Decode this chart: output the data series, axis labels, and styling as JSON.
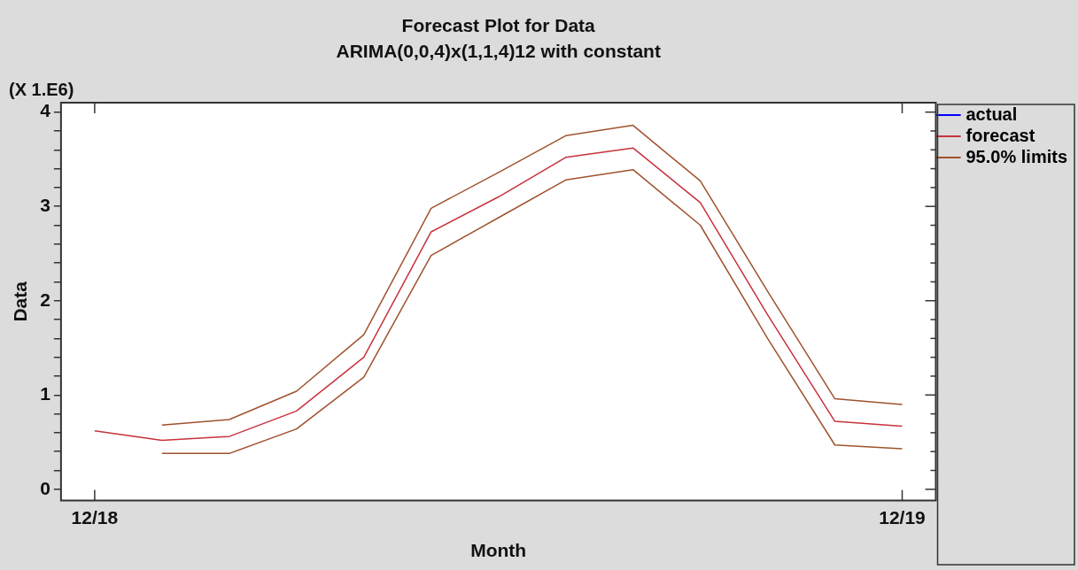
{
  "chart_data": {
    "type": "line",
    "title": "Forecast Plot for Data",
    "subtitle": "ARIMA(0,0,4)x(1,1,4)12 with constant",
    "xlabel": "Month",
    "ylabel": "Data",
    "annotations": [
      "(X 1.E6)"
    ],
    "categories": [
      "12/18",
      null,
      null,
      null,
      null,
      null,
      null,
      null,
      null,
      null,
      null,
      null,
      "12/19"
    ],
    "series": [
      {
        "name": "actual",
        "color": "#0000ff",
        "values": [
          null,
          null,
          null,
          null,
          null,
          null,
          null,
          null,
          null,
          null,
          null,
          null,
          null
        ]
      },
      {
        "name": "forecast",
        "color": "#c8323c",
        "values": [
          0.62,
          0.52,
          0.56,
          0.83,
          1.4,
          2.73,
          3.1,
          3.52,
          3.62,
          3.04,
          1.85,
          0.72,
          0.67
        ]
      },
      {
        "name": "95.0% limits",
        "color": "#a0522d",
        "values": [
          null,
          0.68,
          0.74,
          1.04,
          1.64,
          2.98,
          3.36,
          3.75,
          3.86,
          3.27,
          2.1,
          0.96,
          0.9
        ]
      },
      {
        "color": "#a0522d",
        "values": [
          null,
          0.38,
          0.38,
          0.64,
          1.19,
          2.48,
          2.88,
          3.28,
          3.39,
          2.8,
          1.6,
          0.47,
          0.43
        ]
      }
    ],
    "ylim": [
      -0.12,
      4.1
    ],
    "yticks": [
      0,
      {
        "value": 0.2,
        "label": null
      },
      {
        "value": 0.4,
        "label": null
      },
      {
        "value": 0.6,
        "label": null
      },
      {
        "value": 0.8,
        "label": null
      },
      1,
      {
        "value": 1.2,
        "label": null
      },
      {
        "value": 1.4,
        "label": null
      },
      {
        "value": 1.6,
        "label": null
      },
      {
        "value": 1.8,
        "label": null
      },
      2,
      {
        "value": 2.2,
        "label": null
      },
      {
        "value": 2.4,
        "label": null
      },
      {
        "value": 2.6,
        "label": null
      },
      {
        "value": 2.8,
        "label": null
      },
      3,
      {
        "value": 3.2,
        "label": null
      },
      {
        "value": 3.4,
        "label": null
      },
      {
        "value": 3.6,
        "label": null
      },
      {
        "value": 3.8,
        "label": null
      },
      4
    ],
    "grid": false,
    "legend": "top right",
    "marker": "none",
    "line_style": "solid"
  }
}
